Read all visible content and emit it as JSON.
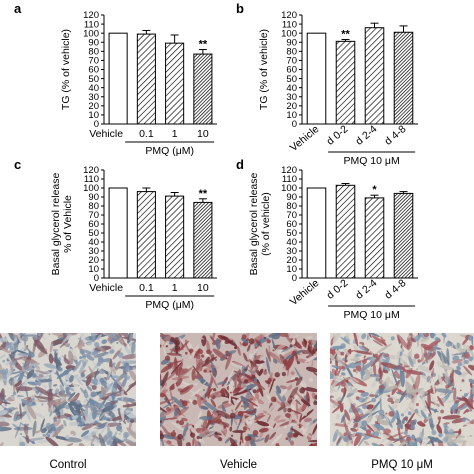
{
  "chart_data": [
    {
      "panel": "a",
      "type": "bar",
      "ylabel": "TG (% of vehicle)",
      "ylim": [
        0,
        120
      ],
      "yticks": [
        0,
        10,
        20,
        30,
        40,
        50,
        60,
        70,
        80,
        90,
        100,
        110,
        120
      ],
      "categories": [
        "Vehicle",
        "0.1",
        "1",
        "10"
      ],
      "values": [
        100,
        99,
        89,
        77
      ],
      "errors": [
        0,
        4,
        9,
        5
      ],
      "patterns": [
        "white",
        "hatch-light",
        "hatch-light",
        "hatch-dark"
      ],
      "significance": [
        "",
        "",
        "",
        "**"
      ],
      "group_label": "PMQ (μM)"
    },
    {
      "panel": "b",
      "type": "bar",
      "ylabel": "TG (% of vehicle)",
      "ylim": [
        0,
        120
      ],
      "yticks": [
        0,
        10,
        20,
        30,
        40,
        50,
        60,
        70,
        80,
        90,
        100,
        110,
        120
      ],
      "categories": [
        "Vehicle",
        "d 0-2",
        "d 2-4",
        "d 4-8"
      ],
      "values": [
        100,
        91,
        106,
        101
      ],
      "errors": [
        0,
        2,
        5,
        7
      ],
      "patterns": [
        "white",
        "hatch-light",
        "hatch-light",
        "hatch-dark"
      ],
      "significance": [
        "",
        "**",
        "",
        ""
      ],
      "group_label": "PMQ 10 μM"
    },
    {
      "panel": "c",
      "type": "bar",
      "ylabel": "Basal glycerol release\n% of Vehicle",
      "ylim": [
        0,
        120
      ],
      "yticks": [
        0,
        10,
        20,
        30,
        40,
        50,
        60,
        70,
        80,
        90,
        100,
        110,
        120
      ],
      "categories": [
        "Vehicle",
        "0.1",
        "1",
        "10"
      ],
      "values": [
        100,
        96,
        91,
        84
      ],
      "errors": [
        0,
        4,
        4,
        4
      ],
      "patterns": [
        "white",
        "hatch-light",
        "hatch-light",
        "hatch-dark"
      ],
      "significance": [
        "",
        "",
        "",
        "**"
      ],
      "group_label": "PMQ (μM)"
    },
    {
      "panel": "d",
      "type": "bar",
      "ylabel": "Basal glycerol release\n(% of vehicle)",
      "ylim": [
        0,
        120
      ],
      "yticks": [
        0,
        10,
        20,
        30,
        40,
        50,
        60,
        70,
        80,
        90,
        100,
        110,
        120
      ],
      "categories": [
        "Vehicle",
        "d 0-2",
        "d 2-4",
        "d 4-8"
      ],
      "values": [
        100,
        103,
        89,
        94
      ],
      "errors": [
        0,
        2,
        3,
        2
      ],
      "patterns": [
        "white",
        "hatch-light",
        "hatch-light",
        "hatch-dark"
      ],
      "significance": [
        "",
        "",
        "*",
        ""
      ],
      "group_label": "PMQ 10 μM"
    }
  ],
  "images": {
    "captions": [
      "Control",
      "Vehicle",
      "PMQ 10 μM"
    ],
    "palettes": {
      "control": [
        "#8a9bb0",
        "#6f86a3",
        "#b9c2c9",
        "#d9d6cf",
        "#5e6f86",
        "#a88f8f",
        "#7d5a66"
      ],
      "vehicle": [
        "#8c3b3f",
        "#6e2f35",
        "#b4797a",
        "#c9b8b4",
        "#5f6f86",
        "#9a5a5e",
        "#d8cfc9"
      ],
      "pmq": [
        "#7f95ad",
        "#a45a60",
        "#c9c6bf",
        "#dcd8d0",
        "#6a7c94",
        "#8f4a52",
        "#b8b3ab"
      ]
    }
  },
  "colors": {
    "axis": "#000000",
    "bar_fill": "#ffffff",
    "hatch": "#000000"
  }
}
